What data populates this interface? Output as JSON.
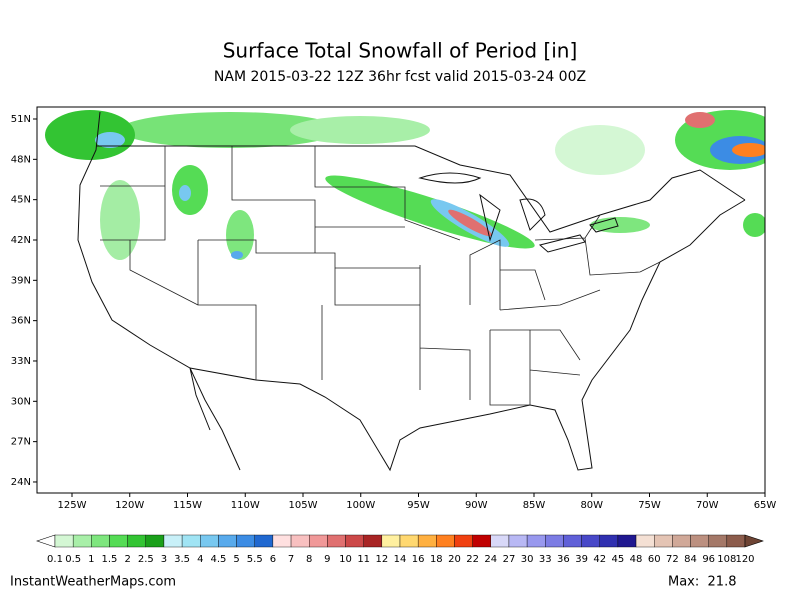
{
  "title": "Surface Total Snowfall of Period [in]",
  "subtitle": "NAM 2015-03-22 12Z 36hr fcst valid 2015-03-24 00Z",
  "lat_labels": [
    "51N",
    "48N",
    "45N",
    "42N",
    "39N",
    "36N",
    "33N",
    "30N",
    "27N",
    "24N"
  ],
  "lon_labels": [
    "125W",
    "120W",
    "115W",
    "110W",
    "105W",
    "100W",
    "95W",
    "90W",
    "85W",
    "80W",
    "75W",
    "70W",
    "65W"
  ],
  "colorbar": {
    "labels": [
      "0.1",
      "0.5",
      "1",
      "1.5",
      "2",
      "2.5",
      "3",
      "3.5",
      "4",
      "4.5",
      "5",
      "5.5",
      "6",
      "7",
      "8",
      "9",
      "10",
      "11",
      "12",
      "14",
      "16",
      "18",
      "20",
      "22",
      "24",
      "27",
      "30",
      "33",
      "36",
      "39",
      "42",
      "45",
      "48",
      "60",
      "72",
      "84",
      "96",
      "108",
      "120"
    ],
    "colors": [
      "#d4f7d4",
      "#a8efa8",
      "#7ee67e",
      "#55dc55",
      "#33c433",
      "#1aa01a",
      "#c8f0f8",
      "#a0e4f4",
      "#78c8f0",
      "#58aaec",
      "#3c8ce4",
      "#2068d0",
      "#ffe0e0",
      "#f8c0c0",
      "#f09898",
      "#e07070",
      "#cc4848",
      "#a82424",
      "#fff0a0",
      "#ffd870",
      "#ffb040",
      "#ff8020",
      "#f04010",
      "#c00000",
      "#d8d8f8",
      "#b8b8f4",
      "#9898ee",
      "#7c7ce4",
      "#6060d8",
      "#4848c8",
      "#3030b0",
      "#201890",
      "#f4e0d4",
      "#e4c4b4",
      "#d0a898",
      "#bc9080",
      "#a47868",
      "#8c5c4c"
    ]
  },
  "footer": {
    "source": "InstantWeatherMaps.com",
    "max": "Max:  21.8"
  }
}
